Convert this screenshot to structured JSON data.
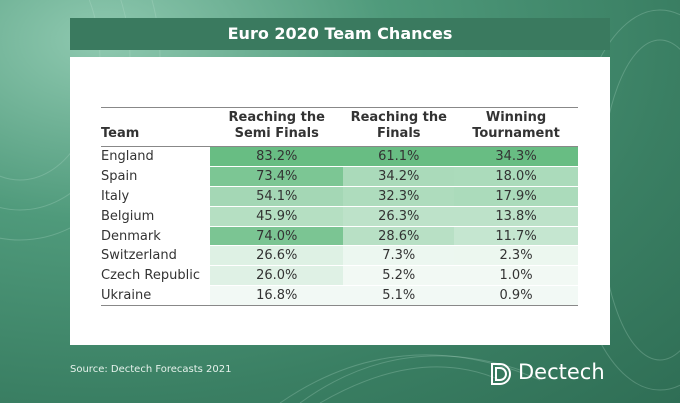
{
  "header": {
    "title": "Euro 2020 Team Chances"
  },
  "table": {
    "columns": [
      "Team",
      "Reaching the Semi Finals",
      "Reaching the Finals",
      "Winning Tournament"
    ],
    "rows": [
      [
        "England",
        "83.2%",
        "61.1%",
        "34.3%"
      ],
      [
        "Spain",
        "73.4%",
        "34.2%",
        "18.0%"
      ],
      [
        "Italy",
        "54.1%",
        "32.3%",
        "17.9%"
      ],
      [
        "Belgium",
        "45.9%",
        "26.3%",
        "13.8%"
      ],
      [
        "Denmark",
        "74.0%",
        "28.6%",
        "11.7%"
      ],
      [
        "Switzerland",
        "26.6%",
        "7.3%",
        "2.3%"
      ],
      [
        "Czech Republic",
        "26.0%",
        "5.2%",
        "1.0%"
      ],
      [
        "Ukraine",
        "16.8%",
        "5.1%",
        "0.9%"
      ]
    ]
  },
  "footer": {
    "source": "Source: Dectech Forecasts 2021",
    "brand": "Dectech"
  }
}
